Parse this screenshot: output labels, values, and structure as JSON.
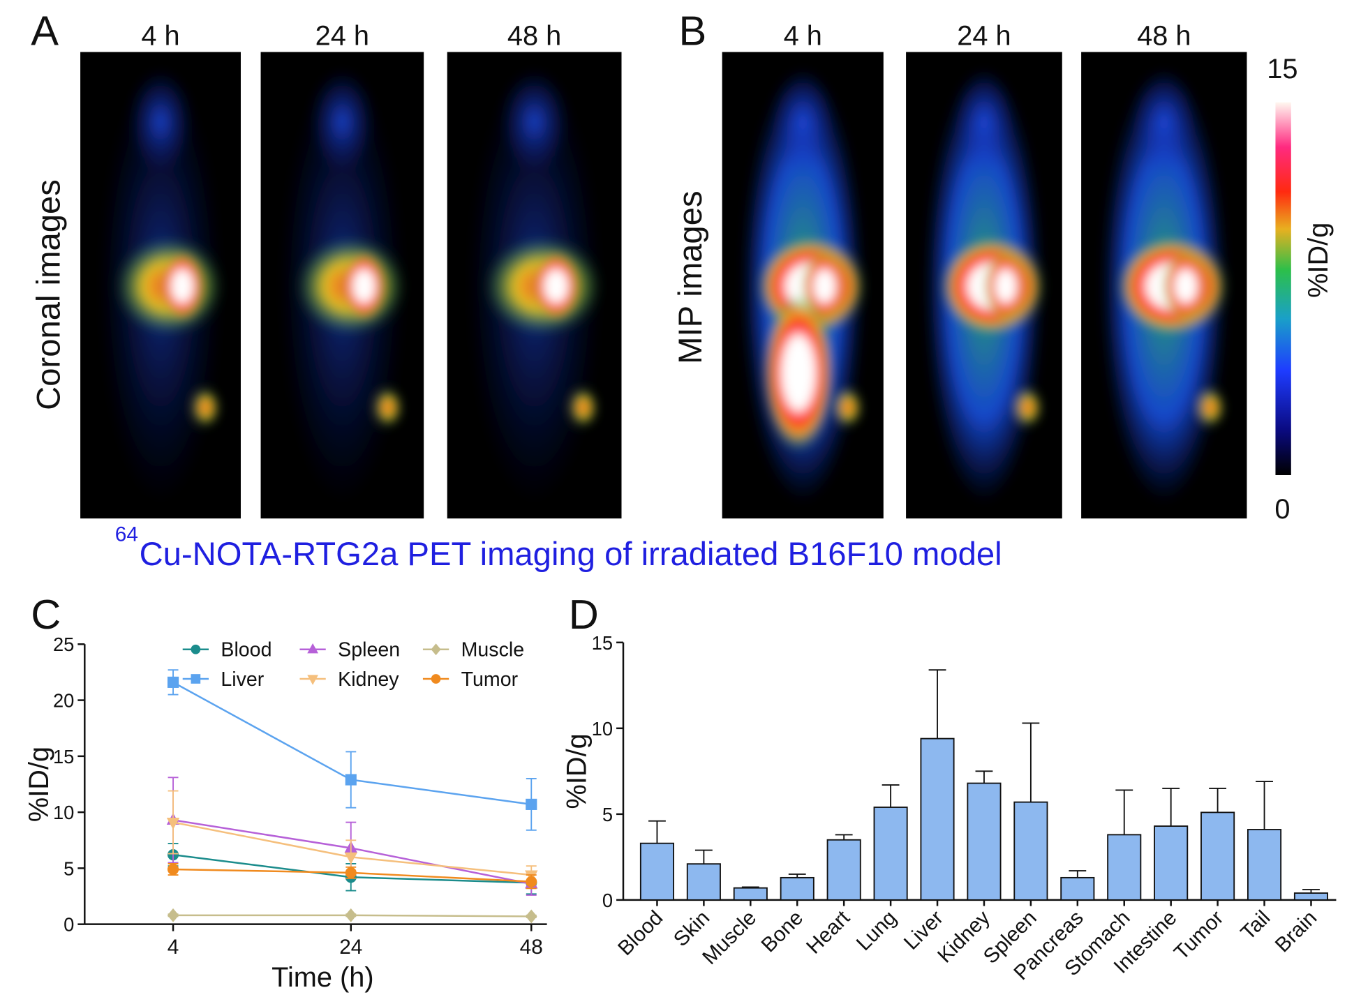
{
  "images": {
    "panel_a": {
      "label": "A",
      "side_label": "Coronal images",
      "times": [
        "4 h",
        "24 h",
        "48 h"
      ]
    },
    "panel_b": {
      "label": "B",
      "side_label": "MIP images",
      "times": [
        "4 h",
        "24 h",
        "48 h"
      ],
      "colorbar": {
        "label": "%ID/g",
        "min": 0,
        "max": 15
      }
    },
    "caption_superscript": "64",
    "caption": "Cu-NOTA-RTG2a PET imaging of irradiated B16F10 model"
  },
  "chart_data": [
    {
      "type": "line",
      "panel": "C",
      "xlabel": "Time (h)",
      "ylabel": "%ID/g",
      "categories": [
        "4",
        "24",
        "48"
      ],
      "ylim": [
        0,
        25
      ],
      "yticks": [
        0,
        5,
        10,
        15,
        20,
        25
      ],
      "series": [
        {
          "name": "Blood",
          "color": "#1b8c8c",
          "marker": "circle",
          "values": [
            6.2,
            4.2,
            3.7
          ],
          "errors": [
            1.0,
            1.2,
            1.0
          ]
        },
        {
          "name": "Liver",
          "color": "#5ba3ef",
          "marker": "square",
          "values": [
            21.6,
            12.9,
            10.7
          ],
          "errors": [
            1.1,
            2.5,
            2.3
          ]
        },
        {
          "name": "Spleen",
          "color": "#b660d8",
          "marker": "triangle",
          "values": [
            9.3,
            6.8,
            3.6
          ],
          "errors": [
            3.8,
            2.3,
            1.0
          ]
        },
        {
          "name": "Kidney",
          "color": "#f5bf7c",
          "marker": "triangle-down",
          "values": [
            9.1,
            6.0,
            4.4
          ],
          "errors": [
            2.8,
            1.5,
            0.8
          ]
        },
        {
          "name": "Muscle",
          "color": "#c6bd8c",
          "marker": "diamond",
          "values": [
            0.8,
            0.8,
            0.7
          ],
          "errors": [
            0.1,
            0.1,
            0.1
          ]
        },
        {
          "name": "Tumor",
          "color": "#f08a1e",
          "marker": "circle",
          "values": [
            4.9,
            4.6,
            3.8
          ],
          "errors": [
            0.5,
            0.5,
            0.6
          ]
        }
      ]
    },
    {
      "type": "bar",
      "panel": "D",
      "ylabel": "%ID/g",
      "categories": [
        "Blood",
        "Skin",
        "Muscle",
        "Bone",
        "Heart",
        "Lung",
        "Liver",
        "Kidney",
        "Spleen",
        "Pancreas",
        "Stomach",
        "Intestine",
        "Tumor",
        "Tail",
        "Brain"
      ],
      "values": [
        3.3,
        2.1,
        0.7,
        1.3,
        3.5,
        5.4,
        9.4,
        6.8,
        5.7,
        1.3,
        3.8,
        4.3,
        5.1,
        4.1,
        0.4
      ],
      "errors": [
        1.3,
        0.8,
        0.05,
        0.2,
        0.3,
        1.3,
        4.0,
        0.7,
        4.6,
        0.4,
        2.6,
        2.2,
        1.4,
        2.8,
        0.2
      ],
      "color": "#8db8ef",
      "ylim": [
        0,
        15
      ],
      "yticks": [
        0,
        5,
        10,
        15
      ]
    }
  ]
}
